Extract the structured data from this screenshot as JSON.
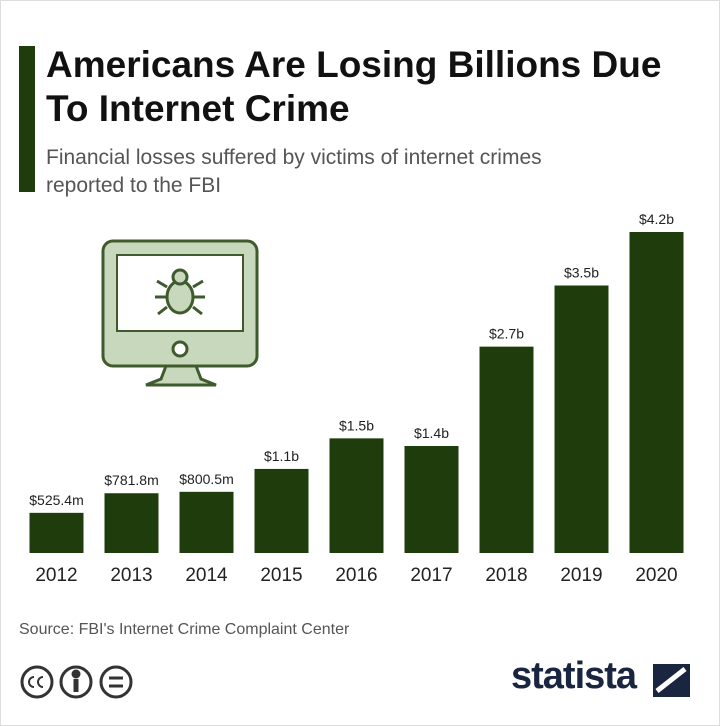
{
  "chart_data": {
    "type": "bar",
    "title": "Americans Are Losing Billions Due To Internet Crime",
    "subtitle": "Financial losses suffered by victims of internet crimes reported to the FBI",
    "categories": [
      "2012",
      "2013",
      "2014",
      "2015",
      "2016",
      "2017",
      "2018",
      "2019",
      "2020"
    ],
    "values": [
      525.4,
      781.8,
      800.5,
      1100,
      1500,
      1400,
      2700,
      3500,
      4200
    ],
    "value_labels": [
      "$525.4m",
      "$781.8m",
      "$800.5m",
      "$1.1b",
      "$1.5b",
      "$1.4b",
      "$2.7b",
      "$3.5b",
      "$4.2b"
    ],
    "color": "#1f3d0c",
    "source": "Source: FBI's Internet Crime Complaint Center",
    "brand": "statista"
  }
}
